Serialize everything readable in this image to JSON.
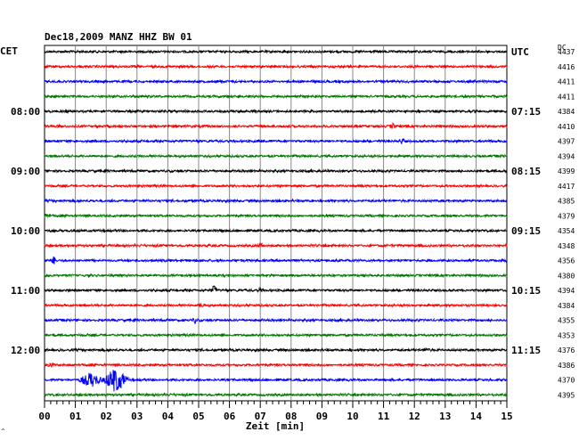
{
  "chart_data": {
    "type": "line",
    "title": "Dec18,2009   MANZ HHZ BW 01",
    "left_zone": "CET",
    "right_zone": "UTC",
    "dc_header": "DC",
    "xlabel": "Zeit [min]",
    "xlim": [
      0,
      15
    ],
    "x_ticks": [
      "00",
      "01",
      "02",
      "03",
      "04",
      "05",
      "06",
      "07",
      "08",
      "09",
      "10",
      "11",
      "12",
      "13",
      "14",
      "15"
    ],
    "trace_colors": [
      "#000000",
      "#ff0000",
      "#0000ff",
      "#007700"
    ],
    "left_time_labels": [
      {
        "trace": 4,
        "label": "08:00"
      },
      {
        "trace": 8,
        "label": "09:00"
      },
      {
        "trace": 12,
        "label": "10:00"
      },
      {
        "trace": 16,
        "label": "11:00"
      },
      {
        "trace": 20,
        "label": "12:00"
      }
    ],
    "right_time_labels": [
      {
        "trace": 0,
        "label": "UTC"
      },
      {
        "trace": 4,
        "label": "07:15"
      },
      {
        "trace": 8,
        "label": "08:15"
      },
      {
        "trace": 12,
        "label": "09:15"
      },
      {
        "trace": 16,
        "label": "10:15"
      },
      {
        "trace": 20,
        "label": "11:15"
      }
    ],
    "dc_values": [
      "4437",
      "4416",
      "4411",
      "4411",
      "4384",
      "4410",
      "4397",
      "4394",
      "4399",
      "4417",
      "4385",
      "4379",
      "4354",
      "4348",
      "4356",
      "4380",
      "4394",
      "4384",
      "4355",
      "4353",
      "4376",
      "4386",
      "4370",
      "4395"
    ],
    "events": [
      {
        "trace": 5,
        "minute": 11.3,
        "amp": 3
      },
      {
        "trace": 6,
        "minute": 11.6,
        "amp": 3
      },
      {
        "trace": 11,
        "minute": 0.1,
        "amp": 3
      },
      {
        "trace": 13,
        "minute": 7.0,
        "amp": 2
      },
      {
        "trace": 13,
        "minute": 15.0,
        "amp": 3
      },
      {
        "trace": 14,
        "minute": 0.3,
        "amp": 4
      },
      {
        "trace": 16,
        "minute": 5.5,
        "amp": 5
      },
      {
        "trace": 16,
        "minute": 7.0,
        "amp": 2
      },
      {
        "trace": 17,
        "minute": 5.1,
        "amp": 2
      },
      {
        "trace": 18,
        "minute": 4.9,
        "amp": 4
      },
      {
        "trace": 20,
        "minute": 12.4,
        "amp": 2
      },
      {
        "trace": 21,
        "minute": 0.2,
        "amp": 3
      },
      {
        "trace": 22,
        "minute": 1.5,
        "amp": 8
      },
      {
        "trace": 22,
        "minute": 2.3,
        "amp": 14
      }
    ]
  }
}
